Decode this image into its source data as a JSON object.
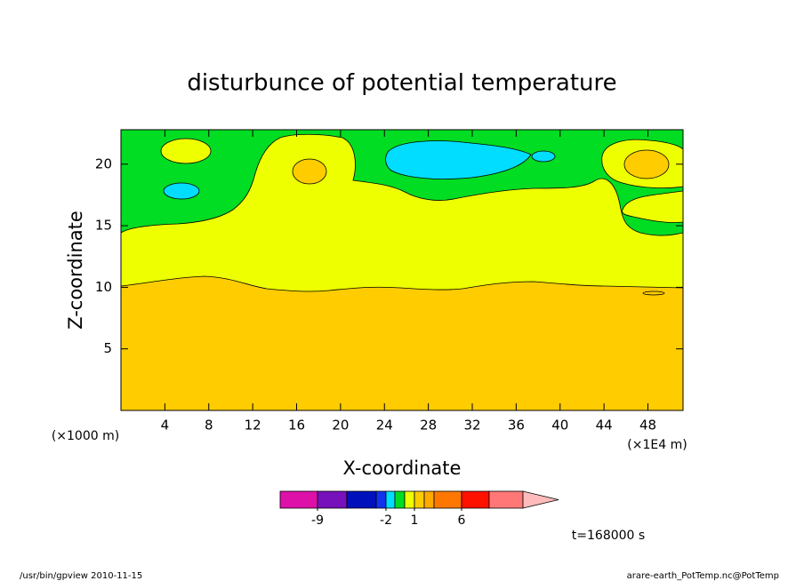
{
  "chart_data": {
    "type": "contour",
    "title": "disturbunce of potential temperature",
    "x_label": "X-coordinate",
    "y_label": "Z-coordinate",
    "x_unit_left": "(×1000 m)",
    "x_unit_right": "(×1E4 m)",
    "xlim": [
      0,
      51.2
    ],
    "ylim": [
      0,
      22.8
    ],
    "xticks": [
      4,
      8,
      12,
      16,
      20,
      24,
      28,
      32,
      36,
      40,
      44,
      48
    ],
    "yticks": [
      5,
      10,
      15,
      20
    ],
    "colorbar": {
      "levels": [
        -12,
        -9,
        -6,
        -3,
        -2,
        -1,
        0,
        1,
        2,
        3,
        6,
        9,
        12
      ],
      "colors": [
        "#dd11aa",
        "#7711bb",
        "#0011bb",
        "#1133ee",
        "#00ddff",
        "#00dd22",
        "#eeff00",
        "#ffcc00",
        "#ffaa00",
        "#ff7700",
        "#ff1100",
        "#ff7777",
        "#ffbbbb"
      ],
      "ticks": [
        -9,
        -2,
        1,
        6
      ]
    },
    "time_label": "t=168000 s",
    "footer_left": "/usr/bin/gpview   2010-11-15",
    "footer_right": "arare-earth_PotTemp.nc@PotTemp"
  }
}
